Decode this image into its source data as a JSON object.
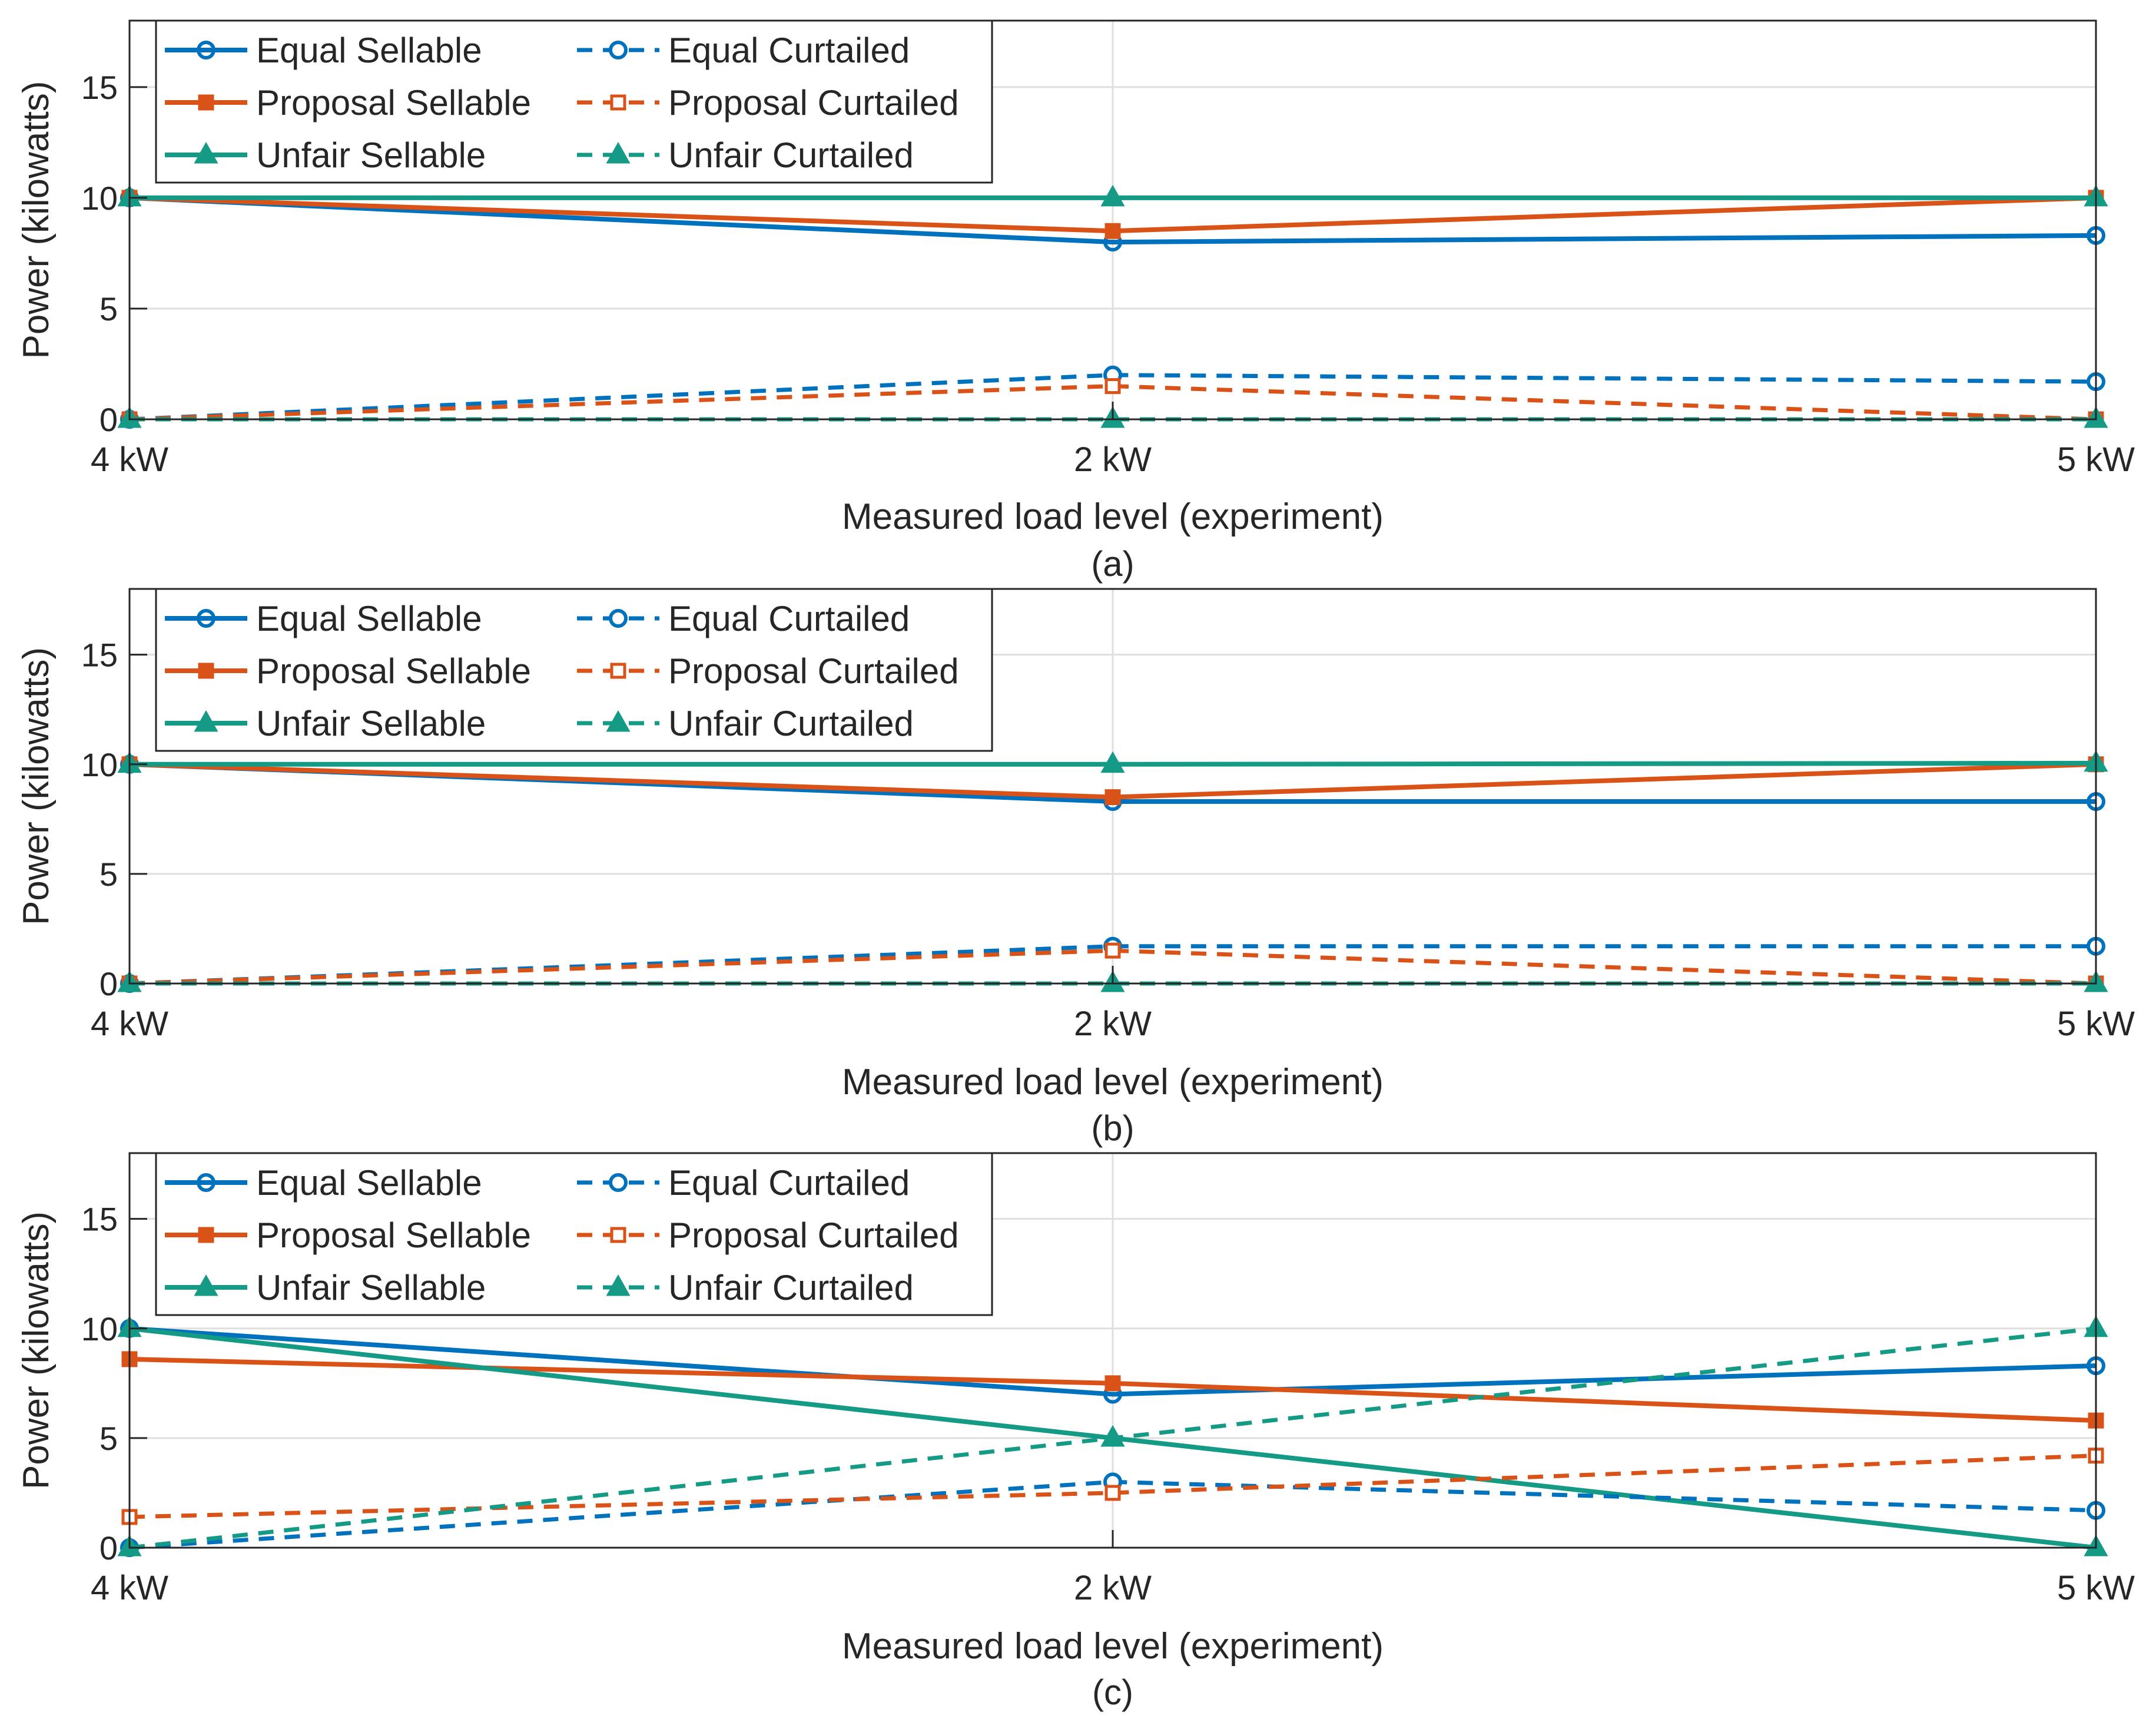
{
  "colors": {
    "equal": "#0072BD",
    "proposal": "#D95319",
    "unfair": "#159A86",
    "axis": "#262626",
    "grid": "#DFDFDF"
  },
  "legend": {
    "entries": [
      {
        "label": "Equal Sellable",
        "series": "equal",
        "style": "solid",
        "marker": "circle"
      },
      {
        "label": "Equal Curtailed",
        "series": "equal",
        "style": "dashed",
        "marker": "circle"
      },
      {
        "label": "Proposal Sellable",
        "series": "proposal",
        "style": "solid",
        "marker": "square"
      },
      {
        "label": "Proposal Curtailed",
        "series": "proposal",
        "style": "dashed",
        "marker": "square"
      },
      {
        "label": "Unfair Sellable",
        "series": "unfair",
        "style": "solid",
        "marker": "triangle"
      },
      {
        "label": "Unfair Curtailed",
        "series": "unfair",
        "style": "dashed",
        "marker": "triangle"
      }
    ],
    "placement": "top-left"
  },
  "chart_data": [
    {
      "type": "line",
      "caption": "(a)",
      "xlabel": "Measured load level (experiment)",
      "ylabel": "Power (kilowatts)",
      "categories": [
        "4 kW",
        "2 kW",
        "5 kW"
      ],
      "ylim": [
        0,
        18
      ],
      "yticks": [
        0,
        5,
        10,
        15
      ],
      "grid": true,
      "series": [
        {
          "name": "Equal Sellable",
          "values": [
            10,
            8,
            8.3
          ]
        },
        {
          "name": "Proposal Sellable",
          "values": [
            10,
            8.5,
            10
          ]
        },
        {
          "name": "Unfair Sellable",
          "values": [
            10,
            10,
            10
          ]
        },
        {
          "name": "Equal Curtailed",
          "values": [
            0,
            2,
            1.7
          ]
        },
        {
          "name": "Proposal Curtailed",
          "values": [
            0,
            1.5,
            0
          ]
        },
        {
          "name": "Unfair Curtailed",
          "values": [
            0,
            0,
            0
          ]
        }
      ]
    },
    {
      "type": "line",
      "caption": "(b)",
      "xlabel": "Measured load level (experiment)",
      "ylabel": "Power (kilowatts)",
      "categories": [
        "4 kW",
        "2 kW",
        "5 kW"
      ],
      "ylim": [
        0,
        18
      ],
      "yticks": [
        0,
        5,
        10,
        15
      ],
      "grid": true,
      "series": [
        {
          "name": "Equal Sellable",
          "values": [
            10,
            8.3,
            8.3
          ]
        },
        {
          "name": "Proposal Sellable",
          "values": [
            10,
            8.5,
            10
          ]
        },
        {
          "name": "Unfair Sellable",
          "values": [
            10,
            10,
            10.05
          ]
        },
        {
          "name": "Equal Curtailed",
          "values": [
            0,
            1.7,
            1.7
          ]
        },
        {
          "name": "Proposal Curtailed",
          "values": [
            0,
            1.5,
            0
          ]
        },
        {
          "name": "Unfair Curtailed",
          "values": [
            0,
            0,
            0
          ]
        }
      ]
    },
    {
      "type": "line",
      "caption": "(c)",
      "xlabel": "Measured load level (experiment)",
      "ylabel": "Power (kilowatts)",
      "categories": [
        "4 kW",
        "2 kW",
        "5 kW"
      ],
      "ylim": [
        0,
        18
      ],
      "yticks": [
        0,
        5,
        10,
        15
      ],
      "grid": true,
      "series": [
        {
          "name": "Equal Sellable",
          "values": [
            10,
            7,
            8.3
          ]
        },
        {
          "name": "Proposal Sellable",
          "values": [
            8.6,
            7.5,
            5.8
          ]
        },
        {
          "name": "Unfair Sellable",
          "values": [
            10,
            5,
            0
          ]
        },
        {
          "name": "Equal Curtailed",
          "values": [
            0,
            3,
            1.7
          ]
        },
        {
          "name": "Proposal Curtailed",
          "values": [
            1.4,
            2.5,
            4.2
          ]
        },
        {
          "name": "Unfair Curtailed",
          "values": [
            0,
            5,
            10
          ]
        }
      ]
    }
  ]
}
